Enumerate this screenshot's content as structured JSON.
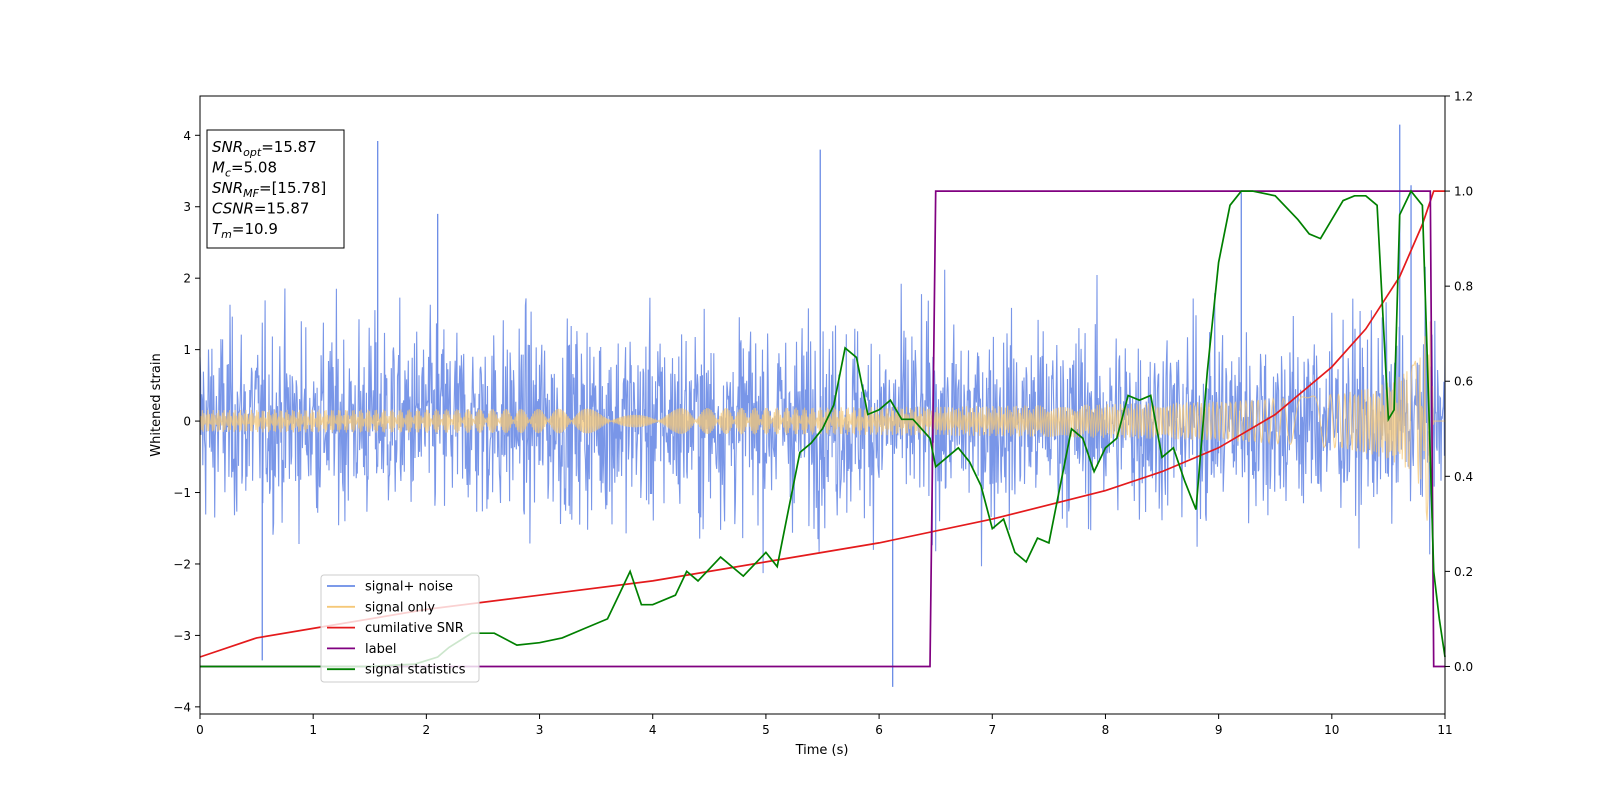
{
  "chart_data": {
    "type": "line",
    "title": "",
    "xlabel": "Time (s)",
    "ylabel": "Whitened strain",
    "xlim": [
      0,
      11
    ],
    "ylim_left": [
      -4.1,
      4.55
    ],
    "ylim_right": [
      -0.1,
      1.2
    ],
    "x_ticks": [
      0,
      1,
      2,
      3,
      4,
      5,
      6,
      7,
      8,
      9,
      10,
      11
    ],
    "y_ticks_left": [
      -4,
      -3,
      -2,
      -1,
      0,
      1,
      2,
      3,
      4
    ],
    "y_ticks_right": [
      0.0,
      0.2,
      0.4,
      0.6,
      0.8,
      1.0,
      1.2
    ],
    "grid": false,
    "legend_position": "lower-left",
    "info_box": [
      {
        "sym": "SNR",
        "sub": "opt",
        "val": "=15.87"
      },
      {
        "sym": "M",
        "sub": "c",
        "val": "=5.08"
      },
      {
        "sym": "SNR",
        "sub": "MF",
        "val": "=[15.78]"
      },
      {
        "sym": "CSNR",
        "sub": "",
        "val": "=15.87"
      },
      {
        "sym": "T",
        "sub": "m",
        "val": "=10.9"
      }
    ],
    "series": [
      {
        "name": "signal+ noise",
        "color": "#6a8be6",
        "axis": "left",
        "kind": "noise",
        "sigma": 0.95,
        "spikes": [
          [
            1.57,
            3.92
          ],
          [
            5.48,
            3.8
          ],
          [
            6.12,
            -3.72
          ],
          [
            10.6,
            4.15
          ],
          [
            9.2,
            3.2
          ],
          [
            10.7,
            3.3
          ],
          [
            2.1,
            2.9
          ],
          [
            0.55,
            -3.35
          ]
        ]
      },
      {
        "name": "signal only",
        "color": "#f5c878",
        "axis": "left",
        "kind": "chirp",
        "amp_start": 0.08,
        "amp_end": 1.4,
        "tm": 10.9
      },
      {
        "name": "cumilative SNR",
        "color": "#e41a1c",
        "axis": "right",
        "kind": "curve",
        "x": [
          0,
          0.5,
          1,
          2,
          3,
          4,
          5,
          6,
          7,
          8,
          8.5,
          9,
          9.5,
          10,
          10.3,
          10.6,
          10.8,
          10.9,
          11
        ],
        "y": [
          0.02,
          0.06,
          0.08,
          0.12,
          0.15,
          0.18,
          0.22,
          0.26,
          0.31,
          0.37,
          0.41,
          0.46,
          0.53,
          0.63,
          0.71,
          0.82,
          0.93,
          1.0,
          1.0
        ]
      },
      {
        "name": "label",
        "color": "#800080",
        "axis": "right",
        "kind": "curve",
        "x": [
          0,
          6.45,
          6.5,
          10.87,
          10.9,
          11
        ],
        "y": [
          0,
          0,
          1,
          1,
          0,
          0
        ]
      },
      {
        "name": "signal statistics",
        "color": "#008000",
        "axis": "right",
        "kind": "curve",
        "x": [
          0,
          1,
          1.5,
          1.9,
          2.1,
          2.2,
          2.4,
          2.6,
          2.8,
          3.0,
          3.2,
          3.4,
          3.6,
          3.7,
          3.8,
          3.9,
          4.0,
          4.2,
          4.3,
          4.4,
          4.6,
          4.8,
          5.0,
          5.1,
          5.2,
          5.3,
          5.4,
          5.5,
          5.6,
          5.7,
          5.8,
          5.9,
          6.0,
          6.1,
          6.2,
          6.3,
          6.45,
          6.5,
          6.6,
          6.7,
          6.8,
          6.9,
          7.0,
          7.1,
          7.2,
          7.3,
          7.4,
          7.5,
          7.6,
          7.7,
          7.8,
          7.9,
          8.0,
          8.1,
          8.2,
          8.3,
          8.4,
          8.5,
          8.6,
          8.7,
          8.8,
          8.9,
          9.0,
          9.1,
          9.2,
          9.3,
          9.5,
          9.7,
          9.8,
          9.9,
          10.0,
          10.1,
          10.2,
          10.3,
          10.4,
          10.5,
          10.55,
          10.6,
          10.7,
          10.8,
          10.85,
          10.9,
          10.95,
          11.0
        ],
        "y": [
          0.0,
          0.0,
          0.0,
          0.005,
          0.02,
          0.04,
          0.07,
          0.07,
          0.045,
          0.05,
          0.06,
          0.08,
          0.1,
          0.15,
          0.2,
          0.13,
          0.13,
          0.15,
          0.2,
          0.18,
          0.23,
          0.19,
          0.24,
          0.21,
          0.33,
          0.45,
          0.47,
          0.5,
          0.55,
          0.67,
          0.65,
          0.53,
          0.54,
          0.56,
          0.52,
          0.52,
          0.48,
          0.42,
          0.44,
          0.46,
          0.43,
          0.38,
          0.29,
          0.31,
          0.24,
          0.22,
          0.27,
          0.26,
          0.38,
          0.5,
          0.48,
          0.41,
          0.46,
          0.48,
          0.57,
          0.56,
          0.57,
          0.44,
          0.46,
          0.39,
          0.33,
          0.62,
          0.85,
          0.97,
          1.0,
          1.0,
          0.99,
          0.94,
          0.91,
          0.9,
          0.94,
          0.98,
          0.99,
          0.99,
          0.97,
          0.52,
          0.54,
          0.95,
          1.0,
          0.97,
          0.6,
          0.2,
          0.1,
          0.02
        ]
      }
    ]
  }
}
